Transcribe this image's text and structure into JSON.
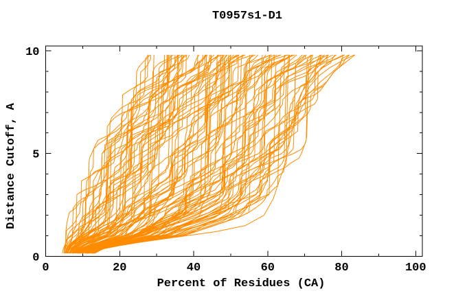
{
  "window": {
    "background": "#ffffff"
  },
  "chart_data": {
    "type": "line",
    "title": "T0957s1-D1",
    "xlabel": "Percent of Residues (CA)",
    "ylabel": "Distance Cutoff, A",
    "xlim": [
      0,
      101.8
    ],
    "ylim": [
      0,
      10.23
    ],
    "x_ticks_major": [
      0,
      20,
      40,
      60,
      80,
      100
    ],
    "x_ticks_minor": [
      10,
      30,
      50,
      70,
      90
    ],
    "y_ticks_major": [
      0,
      5,
      10
    ],
    "y_ticks_minor": [
      1,
      2,
      3,
      4,
      6,
      7,
      8,
      9
    ],
    "grid": false,
    "legend": "none",
    "axis_color": "#000000",
    "series_color": "#ff8c00",
    "n_curves": 108,
    "seed": 957,
    "curve_model": {
      "description": "Family of per-model GDT curves: percent of CA residues (x) under each distance cutoff (y). Curves start near x=5-12 at cutoff ~0.15A and terminate at cutoff 9.8A with endpoints spread from ~29% to ~83%.",
      "y_start": 0.15,
      "y_step": 0.22,
      "y_top": 9.8,
      "cutoff_ctrl": [
        0.25,
        0.5,
        1,
        2,
        3,
        4,
        5,
        6,
        7,
        8,
        9,
        9.8
      ],
      "envelope_left_x": [
        4.8,
        5.2,
        6,
        7.5,
        9.5,
        11.5,
        14,
        16.5,
        19.5,
        22.5,
        26,
        28.5
      ],
      "envelope_right_x": [
        13,
        18,
        36,
        52,
        60,
        64,
        67,
        69,
        70.5,
        72,
        76,
        81.5
      ],
      "wiggle": 0.07
    },
    "outlier_curves": [
      {
        "name": "rightmost-model-curve",
        "points": [
          [
            7.5,
            0.15
          ],
          [
            10,
            0.5
          ],
          [
            14,
            1.0
          ],
          [
            22,
            1.6
          ],
          [
            30,
            2.2
          ],
          [
            38,
            2.9
          ],
          [
            46,
            3.6
          ],
          [
            53,
            4.3
          ],
          [
            59,
            5.0
          ],
          [
            63,
            5.6
          ],
          [
            66,
            6.3
          ],
          [
            68,
            7.0
          ],
          [
            69.5,
            7.7
          ],
          [
            71.5,
            8.3
          ],
          [
            74,
            8.8
          ],
          [
            77,
            9.2
          ],
          [
            80,
            9.5
          ],
          [
            83.4,
            9.8
          ]
        ]
      },
      {
        "name": "slow-sweep-model-curve",
        "points": [
          [
            9,
            0.15
          ],
          [
            16,
            0.4
          ],
          [
            26,
            0.7
          ],
          [
            36,
            0.95
          ],
          [
            46,
            1.2
          ],
          [
            54,
            1.5
          ],
          [
            59,
            2.0
          ],
          [
            61.5,
            2.8
          ],
          [
            63,
            3.6
          ],
          [
            64.5,
            4.4
          ],
          [
            65.5,
            5.2
          ],
          [
            66.5,
            6.0
          ],
          [
            67.5,
            6.8
          ],
          [
            68.5,
            7.6
          ],
          [
            70,
            8.3
          ],
          [
            72,
            8.9
          ],
          [
            74.5,
            9.4
          ],
          [
            76.5,
            9.8
          ]
        ]
      }
    ]
  }
}
